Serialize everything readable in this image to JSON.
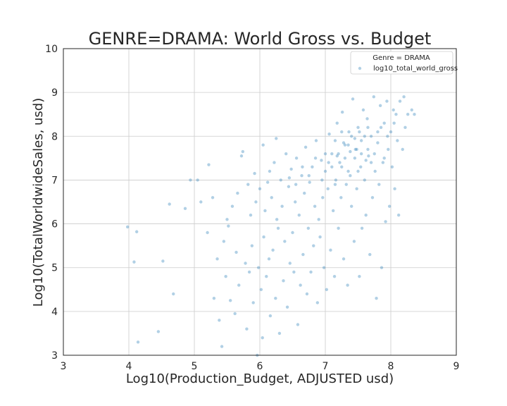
{
  "chart_data": {
    "type": "scatter",
    "title": "GENRE=DRAMA: World Gross vs. Budget",
    "xlabel": "Log10(Production_Budget, ADJUSTED usd)",
    "ylabel": "Log10(TotalWorldwideSales, usd)",
    "xlim": [
      3,
      9
    ],
    "ylim": [
      3,
      10
    ],
    "xticks": [
      "3",
      "4",
      "5",
      "6",
      "7",
      "8",
      "9"
    ],
    "yticks": [
      "3",
      "4",
      "5",
      "6",
      "7",
      "8",
      "9",
      "10"
    ],
    "grid": true,
    "legend": {
      "title": "Genre = DRAMA",
      "placement": "top-right",
      "entries": [
        "log10_total_world_gross"
      ]
    },
    "colors": {
      "points": "#1f77b4"
    },
    "series": [
      {
        "name": "log10_total_world_gross",
        "points": [
          [
            3.98,
            5.93
          ],
          [
            4.08,
            5.13
          ],
          [
            4.12,
            5.82
          ],
          [
            4.14,
            3.3
          ],
          [
            4.45,
            3.54
          ],
          [
            4.52,
            5.15
          ],
          [
            4.62,
            6.45
          ],
          [
            4.68,
            4.4
          ],
          [
            4.86,
            6.35
          ],
          [
            4.94,
            7.0
          ],
          [
            5.05,
            7.0
          ],
          [
            5.1,
            6.5
          ],
          [
            5.2,
            5.8
          ],
          [
            5.22,
            7.35
          ],
          [
            5.28,
            6.6
          ],
          [
            5.3,
            4.3
          ],
          [
            5.35,
            5.2
          ],
          [
            5.38,
            3.8
          ],
          [
            5.42,
            3.2
          ],
          [
            5.45,
            5.6
          ],
          [
            5.48,
            4.8
          ],
          [
            5.5,
            6.1
          ],
          [
            5.52,
            5.95
          ],
          [
            5.55,
            4.25
          ],
          [
            5.58,
            6.4
          ],
          [
            5.62,
            3.95
          ],
          [
            5.64,
            5.35
          ],
          [
            5.66,
            6.7
          ],
          [
            5.68,
            4.6
          ],
          [
            5.72,
            7.55
          ],
          [
            5.74,
            7.65
          ],
          [
            5.78,
            5.1
          ],
          [
            5.8,
            3.6
          ],
          [
            5.82,
            6.9
          ],
          [
            5.84,
            4.9
          ],
          [
            5.86,
            6.2
          ],
          [
            5.88,
            5.5
          ],
          [
            5.9,
            4.2
          ],
          [
            5.92,
            7.15
          ],
          [
            5.94,
            6.5
          ],
          [
            5.96,
            3.0
          ],
          [
            5.98,
            5.0
          ],
          [
            6.0,
            6.8
          ],
          [
            6.02,
            4.5
          ],
          [
            6.04,
            3.4
          ],
          [
            6.05,
            7.8
          ],
          [
            6.06,
            5.7
          ],
          [
            6.08,
            6.3
          ],
          [
            6.1,
            4.8
          ],
          [
            6.12,
            6.95
          ],
          [
            6.14,
            5.2
          ],
          [
            6.15,
            7.2
          ],
          [
            6.16,
            3.9
          ],
          [
            6.18,
            6.6
          ],
          [
            6.2,
            5.4
          ],
          [
            6.22,
            7.4
          ],
          [
            6.24,
            4.3
          ],
          [
            6.25,
            7.95
          ],
          [
            6.26,
            6.1
          ],
          [
            6.28,
            5.9
          ],
          [
            6.3,
            3.5
          ],
          [
            6.32,
            7.0
          ],
          [
            6.34,
            6.4
          ],
          [
            6.36,
            4.7
          ],
          [
            6.38,
            5.6
          ],
          [
            6.4,
            7.6
          ],
          [
            6.42,
            4.1
          ],
          [
            6.44,
            6.85
          ],
          [
            6.46,
            5.1
          ],
          [
            6.48,
            7.25
          ],
          [
            6.5,
            5.8
          ],
          [
            6.52,
            4.9
          ],
          [
            6.54,
            6.5
          ],
          [
            6.56,
            7.5
          ],
          [
            6.58,
            3.7
          ],
          [
            6.6,
            6.2
          ],
          [
            6.62,
            4.6
          ],
          [
            6.64,
            7.1
          ],
          [
            6.66,
            5.3
          ],
          [
            6.68,
            6.7
          ],
          [
            6.7,
            7.75
          ],
          [
            6.72,
            4.4
          ],
          [
            6.74,
            5.9
          ],
          [
            6.76,
            6.95
          ],
          [
            6.78,
            4.9
          ],
          [
            6.8,
            7.3
          ],
          [
            6.82,
            5.5
          ],
          [
            6.84,
            6.4
          ],
          [
            6.86,
            7.9
          ],
          [
            6.88,
            4.2
          ],
          [
            6.9,
            6.1
          ],
          [
            6.92,
            5.7
          ],
          [
            6.94,
            7.45
          ],
          [
            6.96,
            6.6
          ],
          [
            6.98,
            5.0
          ],
          [
            7.0,
            7.2
          ],
          [
            7.02,
            4.5
          ],
          [
            7.04,
            6.8
          ],
          [
            7.06,
            8.05
          ],
          [
            7.08,
            5.4
          ],
          [
            7.1,
            7.6
          ],
          [
            7.12,
            6.3
          ],
          [
            7.14,
            4.8
          ],
          [
            7.16,
            7.0
          ],
          [
            7.18,
            8.3
          ],
          [
            7.2,
            5.9
          ],
          [
            7.22,
            7.4
          ],
          [
            7.24,
            6.6
          ],
          [
            7.26,
            8.55
          ],
          [
            7.28,
            5.2
          ],
          [
            7.3,
            7.8
          ],
          [
            7.32,
            6.9
          ],
          [
            7.34,
            4.6
          ],
          [
            7.36,
            8.1
          ],
          [
            7.38,
            7.1
          ],
          [
            7.4,
            6.4
          ],
          [
            7.42,
            8.85
          ],
          [
            7.44,
            5.6
          ],
          [
            7.46,
            7.7
          ],
          [
            7.48,
            6.8
          ],
          [
            7.5,
            8.2
          ],
          [
            7.52,
            4.8
          ],
          [
            7.54,
            7.3
          ],
          [
            7.56,
            5.9
          ],
          [
            7.58,
            8.6
          ],
          [
            7.6,
            7.0
          ],
          [
            7.62,
            6.2
          ],
          [
            7.64,
            8.4
          ],
          [
            7.66,
            7.55
          ],
          [
            7.68,
            5.3
          ],
          [
            7.7,
            8.0
          ],
          [
            7.72,
            6.6
          ],
          [
            7.74,
            8.9
          ],
          [
            7.76,
            7.2
          ],
          [
            7.78,
            4.3
          ],
          [
            7.8,
            7.85
          ],
          [
            7.82,
            6.9
          ],
          [
            7.84,
            8.7
          ],
          [
            7.86,
            5.0
          ],
          [
            7.88,
            7.4
          ],
          [
            7.9,
            8.3
          ],
          [
            7.92,
            6.05
          ],
          [
            7.94,
            8.8
          ],
          [
            7.96,
            7.7
          ],
          [
            7.98,
            6.4
          ],
          [
            8.0,
            8.1
          ],
          [
            8.02,
            7.3
          ],
          [
            8.04,
            8.6
          ],
          [
            8.06,
            6.8
          ],
          [
            8.08,
            8.5
          ],
          [
            8.1,
            7.9
          ],
          [
            8.12,
            6.2
          ],
          [
            8.14,
            8.8
          ],
          [
            8.18,
            7.7
          ],
          [
            8.2,
            8.9
          ],
          [
            8.22,
            8.2
          ],
          [
            8.26,
            8.5
          ],
          [
            8.32,
            8.6
          ],
          [
            8.36,
            8.5
          ],
          [
            7.2,
            7.6
          ],
          [
            7.35,
            7.8
          ],
          [
            7.45,
            7.5
          ],
          [
            7.55,
            7.9
          ],
          [
            7.65,
            7.7
          ],
          [
            7.25,
            7.3
          ],
          [
            7.15,
            7.9
          ],
          [
            7.5,
            7.2
          ],
          [
            7.6,
            8.0
          ],
          [
            7.4,
            8.0
          ],
          [
            7.7,
            7.4
          ],
          [
            7.8,
            8.1
          ],
          [
            7.3,
            7.5
          ],
          [
            7.1,
            7.3
          ],
          [
            7.0,
            7.6
          ],
          [
            6.95,
            7.0
          ],
          [
            7.05,
            7.4
          ],
          [
            7.45,
            7.95
          ],
          [
            7.55,
            7.6
          ],
          [
            7.85,
            8.2
          ],
          [
            7.95,
            8.0
          ],
          [
            7.15,
            6.9
          ],
          [
            7.35,
            7.2
          ],
          [
            6.85,
            7.5
          ],
          [
            6.75,
            7.1
          ],
          [
            6.65,
            7.3
          ],
          [
            6.55,
            6.9
          ],
          [
            6.45,
            7.05
          ],
          [
            7.25,
            8.1
          ],
          [
            7.65,
            8.2
          ],
          [
            7.75,
            7.6
          ],
          [
            7.9,
            7.5
          ],
          [
            8.05,
            8.3
          ],
          [
            7.48,
            7.7
          ],
          [
            7.52,
            8.1
          ],
          [
            7.62,
            7.45
          ],
          [
            7.38,
            7.65
          ],
          [
            7.28,
            7.85
          ],
          [
            7.18,
            7.55
          ]
        ]
      }
    ]
  }
}
